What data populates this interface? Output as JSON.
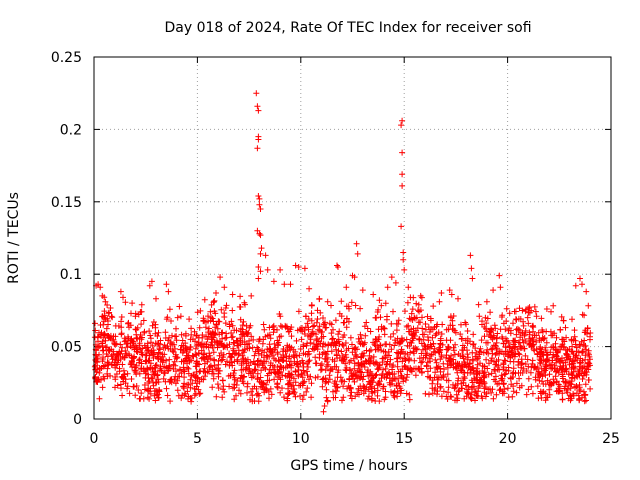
{
  "chart_data": {
    "type": "scatter",
    "title": "Day 018 of 2024, Rate Of TEC Index for receiver sofi",
    "xlabel": "GPS time / hours",
    "ylabel": "ROTI / TECUs",
    "xlim": [
      0,
      25
    ],
    "ylim": [
      0,
      0.25
    ],
    "xticks": [
      0,
      5,
      10,
      15,
      20,
      25
    ],
    "xtick_labels": [
      "0",
      "5",
      "10",
      "15",
      "20",
      "25"
    ],
    "yticks": [
      0,
      0.05,
      0.1,
      0.15,
      0.2,
      0.25
    ],
    "ytick_labels": [
      "0",
      "0.05",
      "0.1",
      "0.15",
      "0.2",
      "0.25"
    ],
    "grid": true,
    "marker": "+",
    "color": "#ff0000",
    "series": [
      {
        "name": "ROTI",
        "points": [
          [
            0.05,
            0.066
          ],
          [
            0.1,
            0.092
          ],
          [
            0.2,
            0.093
          ],
          [
            0.3,
            0.091
          ],
          [
            0.4,
            0.085
          ],
          [
            0.55,
            0.081
          ],
          [
            1.3,
            0.088
          ],
          [
            1.4,
            0.084
          ],
          [
            2.0,
            0.071
          ],
          [
            2.3,
            0.074
          ],
          [
            2.7,
            0.092
          ],
          [
            2.8,
            0.095
          ],
          [
            3.0,
            0.083
          ],
          [
            3.5,
            0.093
          ],
          [
            3.6,
            0.088
          ],
          [
            4.2,
            0.071
          ],
          [
            4.6,
            0.069
          ],
          [
            5.3,
            0.068
          ],
          [
            5.8,
            0.081
          ],
          [
            5.9,
            0.087
          ],
          [
            6.1,
            0.098
          ],
          [
            6.3,
            0.091
          ],
          [
            6.7,
            0.086
          ],
          [
            7.3,
            0.079
          ],
          [
            7.6,
            0.085
          ],
          [
            7.85,
            0.225
          ],
          [
            7.9,
            0.216
          ],
          [
            7.95,
            0.213
          ],
          [
            7.95,
            0.195
          ],
          [
            7.95,
            0.193
          ],
          [
            7.9,
            0.187
          ],
          [
            7.95,
            0.154
          ],
          [
            8.0,
            0.152
          ],
          [
            8.0,
            0.148
          ],
          [
            8.05,
            0.145
          ],
          [
            7.9,
            0.13
          ],
          [
            8.0,
            0.128
          ],
          [
            8.05,
            0.127
          ],
          [
            8.1,
            0.118
          ],
          [
            8.05,
            0.114
          ],
          [
            7.95,
            0.105
          ],
          [
            8.05,
            0.102
          ],
          [
            7.95,
            0.097
          ],
          [
            8.3,
            0.113
          ],
          [
            8.4,
            0.103
          ],
          [
            8.7,
            0.095
          ],
          [
            9.0,
            0.103
          ],
          [
            9.2,
            0.093
          ],
          [
            9.5,
            0.093
          ],
          [
            9.75,
            0.106
          ],
          [
            9.9,
            0.105
          ],
          [
            10.2,
            0.104
          ],
          [
            10.4,
            0.09
          ],
          [
            10.9,
            0.083
          ],
          [
            11.3,
            0.081
          ],
          [
            11.75,
            0.106
          ],
          [
            11.8,
            0.105
          ],
          [
            12.2,
            0.091
          ],
          [
            12.5,
            0.099
          ],
          [
            12.6,
            0.098
          ],
          [
            12.7,
            0.121
          ],
          [
            12.75,
            0.114
          ],
          [
            13.0,
            0.089
          ],
          [
            13.5,
            0.086
          ],
          [
            13.8,
            0.082
          ],
          [
            14.2,
            0.091
          ],
          [
            14.4,
            0.098
          ],
          [
            14.6,
            0.094
          ],
          [
            14.9,
            0.206
          ],
          [
            14.85,
            0.203
          ],
          [
            14.9,
            0.184
          ],
          [
            14.9,
            0.169
          ],
          [
            14.9,
            0.161
          ],
          [
            14.85,
            0.133
          ],
          [
            14.95,
            0.115
          ],
          [
            14.95,
            0.11
          ],
          [
            15.0,
            0.103
          ],
          [
            15.2,
            0.091
          ],
          [
            15.3,
            0.084
          ],
          [
            15.8,
            0.085
          ],
          [
            16.4,
            0.078
          ],
          [
            16.7,
            0.081
          ],
          [
            16.8,
            0.087
          ],
          [
            17.2,
            0.089
          ],
          [
            17.3,
            0.086
          ],
          [
            17.6,
            0.083
          ],
          [
            18.2,
            0.113
          ],
          [
            18.25,
            0.104
          ],
          [
            18.3,
            0.097
          ],
          [
            18.6,
            0.079
          ],
          [
            19.0,
            0.081
          ],
          [
            19.3,
            0.089
          ],
          [
            19.6,
            0.099
          ],
          [
            19.65,
            0.091
          ],
          [
            20.1,
            0.073
          ],
          [
            20.4,
            0.069
          ],
          [
            21.0,
            0.066
          ],
          [
            21.4,
            0.071
          ],
          [
            21.9,
            0.076
          ],
          [
            22.1,
            0.074
          ],
          [
            22.7,
            0.068
          ],
          [
            23.3,
            0.092
          ],
          [
            23.5,
            0.097
          ],
          [
            23.6,
            0.093
          ],
          [
            23.8,
            0.088
          ],
          [
            2.2,
            0.014
          ],
          [
            4.1,
            0.016
          ],
          [
            6.2,
            0.015
          ],
          [
            7.4,
            0.018
          ],
          [
            8.6,
            0.017
          ],
          [
            9.4,
            0.017
          ],
          [
            10.5,
            0.015
          ],
          [
            11.1,
            0.005
          ],
          [
            11.15,
            0.009
          ],
          [
            11.3,
            0.012
          ],
          [
            12.4,
            0.016
          ],
          [
            14.1,
            0.015
          ],
          [
            16.2,
            0.017
          ],
          [
            17.9,
            0.014
          ],
          [
            19.2,
            0.018
          ],
          [
            21.6,
            0.019
          ],
          [
            23.7,
            0.017
          ]
        ]
      }
    ]
  }
}
